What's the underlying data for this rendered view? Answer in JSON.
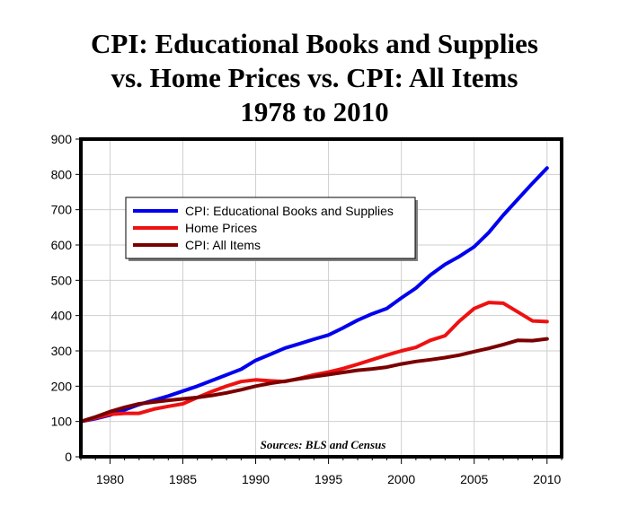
{
  "chart_data": {
    "type": "line",
    "title_lines": [
      "CPI: Educational Books and Supplies",
      "vs. Home Prices vs. CPI: All Items",
      "1978 to 2010"
    ],
    "xlabel": "",
    "ylabel": "",
    "xlim": [
      1978,
      2011
    ],
    "ylim": [
      0,
      900
    ],
    "x_ticks": [
      1980,
      1985,
      1990,
      1995,
      2000,
      2005,
      2010
    ],
    "y_ticks": [
      0,
      100,
      200,
      300,
      400,
      500,
      600,
      700,
      800,
      900
    ],
    "grid": true,
    "legend_position": "upper-left",
    "annotation": "Sources: BLS and Census",
    "x": [
      1978,
      1979,
      1980,
      1981,
      1982,
      1983,
      1984,
      1985,
      1986,
      1987,
      1988,
      1989,
      1990,
      1991,
      1992,
      1993,
      1994,
      1995,
      1996,
      1997,
      1998,
      1999,
      2000,
      2001,
      2002,
      2003,
      2004,
      2005,
      2006,
      2007,
      2008,
      2009,
      2010
    ],
    "series": [
      {
        "name": "CPI: Educational Books and Supplies",
        "color": "#0000ee",
        "values": [
          100,
          108,
          118,
          133,
          148,
          160,
          172,
          186,
          200,
          216,
          232,
          248,
          273,
          290,
          308,
          320,
          333,
          345,
          365,
          387,
          405,
          420,
          450,
          478,
          515,
          545,
          568,
          595,
          635,
          685,
          730,
          775,
          818
        ]
      },
      {
        "name": "Home Prices",
        "color": "#ee1111",
        "values": [
          100,
          110,
          120,
          123,
          123,
          135,
          143,
          150,
          168,
          185,
          200,
          213,
          218,
          215,
          213,
          222,
          232,
          240,
          250,
          262,
          275,
          288,
          300,
          310,
          330,
          343,
          385,
          420,
          437,
          435,
          410,
          385,
          383
        ]
      },
      {
        "name": "CPI: All Items",
        "color": "#7a0000",
        "values": [
          100,
          113,
          128,
          140,
          150,
          155,
          160,
          164,
          168,
          174,
          181,
          190,
          200,
          208,
          214,
          221,
          227,
          233,
          239,
          245,
          249,
          254,
          263,
          270,
          275,
          281,
          288,
          298,
          307,
          318,
          330,
          329,
          334
        ]
      }
    ]
  }
}
